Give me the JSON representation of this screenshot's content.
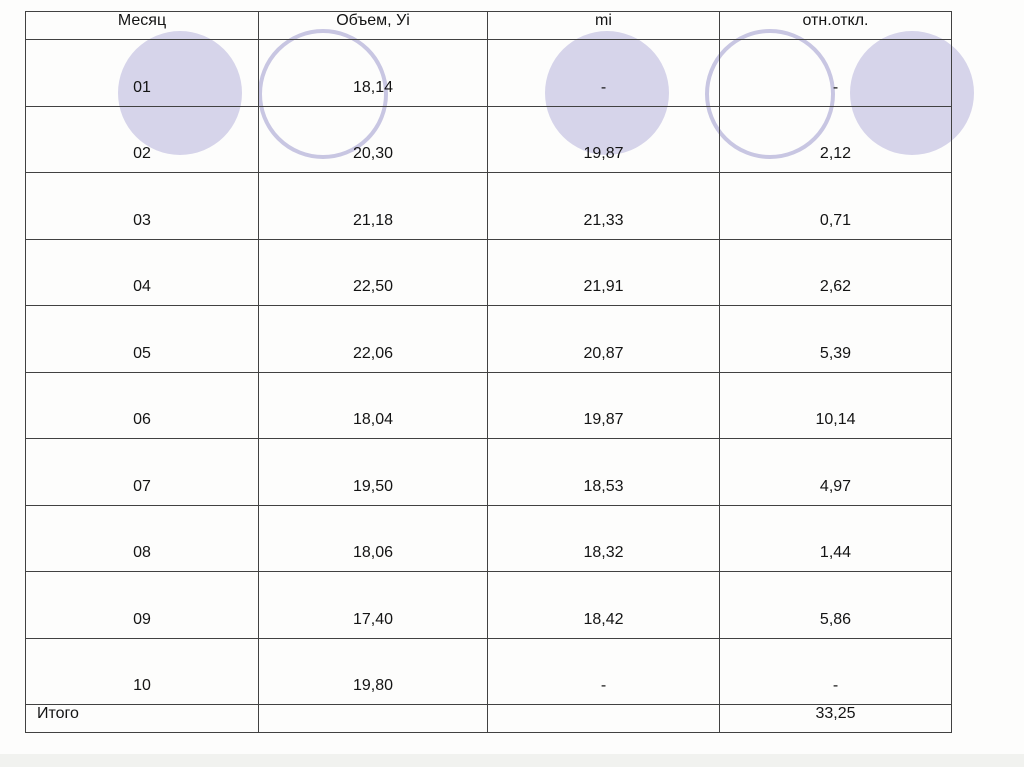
{
  "table": {
    "headers": [
      "Месяц",
      "Объем, Уi",
      "mi",
      "отн.откл."
    ],
    "rows": [
      [
        "01",
        "18,14",
        "-",
        "-"
      ],
      [
        "02",
        "20,30",
        "19,87",
        "2,12"
      ],
      [
        "03",
        "21,18",
        "21,33",
        "0,71"
      ],
      [
        "04",
        "22,50",
        "21,91",
        "2,62"
      ],
      [
        "05",
        "22,06",
        "20,87",
        "5,39"
      ],
      [
        "06",
        "18,04",
        "19,87",
        "10,14"
      ],
      [
        "07",
        "19,50",
        "18,53",
        "4,97"
      ],
      [
        "08",
        "18,06",
        "18,32",
        "1,44"
      ],
      [
        "09",
        "17,40",
        "18,42",
        "5,86"
      ],
      [
        "10",
        "19,80",
        "-",
        "-"
      ]
    ],
    "footer": {
      "label": "Итого",
      "col2": "",
      "col3": "",
      "value": "33,25"
    }
  },
  "decor": {
    "circle_fill_color": "#d6d4ea",
    "circle_ring_color": "#c8c6e2",
    "grid_line_color": "#414141"
  }
}
